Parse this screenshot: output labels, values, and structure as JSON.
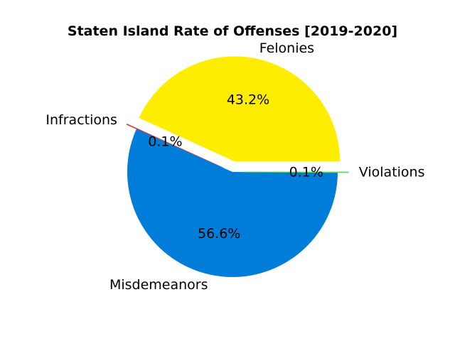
{
  "chart_data": {
    "type": "pie",
    "title": "Staten Island Rate of Offenses [2019-2020]",
    "slices": [
      {
        "label": "Felonies",
        "value": 43.2,
        "pct_label": "43.2%",
        "color": "#ffed00"
      },
      {
        "label": "Infractions",
        "value": 0.1,
        "pct_label": "0.1%",
        "color": "#e8342c"
      },
      {
        "label": "Misdemeanors",
        "value": 56.6,
        "pct_label": "56.6%",
        "color": "#007dd8"
      },
      {
        "label": "Violations",
        "value": 0.1,
        "pct_label": "0.1%",
        "color": "#5cd65c"
      }
    ],
    "start_angle_deg": 0,
    "direction": "counterclockwise",
    "exploded": [
      "Felonies",
      "Infractions",
      "Violations"
    ]
  }
}
